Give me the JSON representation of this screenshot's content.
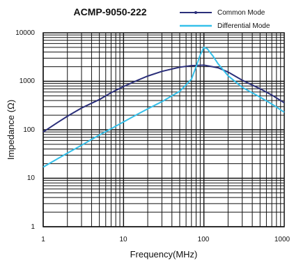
{
  "chart_data": {
    "type": "line",
    "title": "ACMP-9050-222",
    "xlabel": "Frequency(MHz)",
    "ylabel": "Impedance (Ω)",
    "x_scale": "log",
    "y_scale": "log",
    "xlim": [
      1,
      1000
    ],
    "ylim": [
      1,
      10000
    ],
    "x_ticks": [
      "1",
      "10",
      "100",
      "1000"
    ],
    "y_ticks": [
      "1",
      "10",
      "100",
      "1000",
      "10000"
    ],
    "grid": true,
    "legend_position": "top-right",
    "series": [
      {
        "name": "Common Mode",
        "color": "#2b2f7a",
        "marker": "dot",
        "x": [
          1,
          1.5,
          2,
          3,
          5,
          7,
          10,
          15,
          20,
          30,
          50,
          70,
          100,
          150,
          200,
          300,
          500,
          700,
          1000
        ],
        "y": [
          90,
          140,
          190,
          280,
          420,
          580,
          780,
          1050,
          1280,
          1600,
          1950,
          2100,
          2150,
          1900,
          1550,
          1050,
          700,
          520,
          360
        ]
      },
      {
        "name": "Differential Mode",
        "color": "#35c0ea",
        "x": [
          1,
          1.5,
          2,
          3,
          5,
          7,
          10,
          15,
          20,
          30,
          50,
          70,
          80,
          90,
          100,
          110,
          130,
          150,
          200,
          300,
          500,
          700,
          1000
        ],
        "y": [
          17,
          25,
          33,
          48,
          78,
          105,
          145,
          210,
          270,
          380,
          620,
          1100,
          2000,
          3500,
          5000,
          4700,
          3300,
          2300,
          1300,
          750,
          470,
          340,
          230
        ]
      }
    ]
  }
}
